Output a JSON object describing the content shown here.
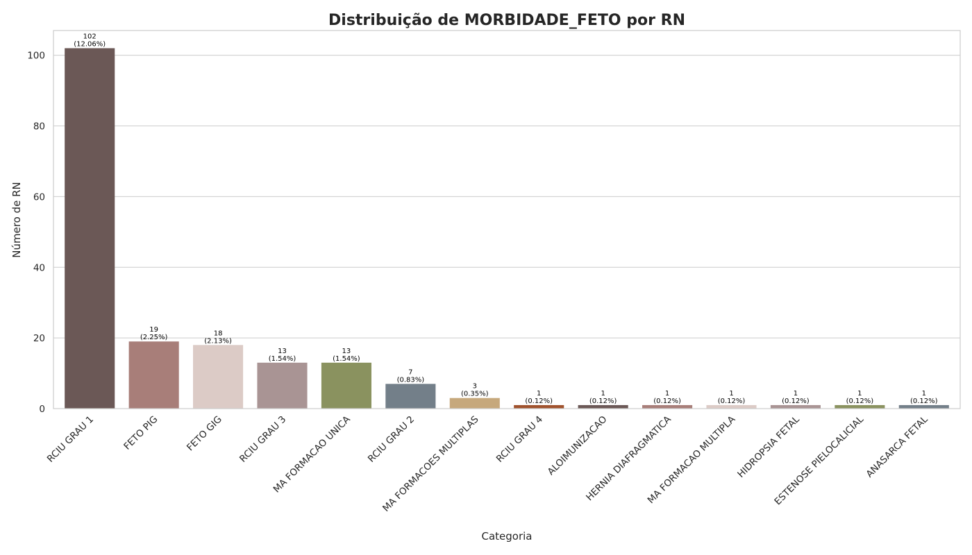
{
  "chart_data": {
    "type": "bar",
    "title": "Distribuição de MORBIDADE_FETO por RN",
    "xlabel": "Categoria",
    "ylabel": "Número de RN",
    "ylim": [
      0,
      107
    ],
    "yticks": [
      0,
      20,
      40,
      60,
      80,
      100
    ],
    "grid": true,
    "categories": [
      "RCIU GRAU 1",
      "FETO PIG",
      "FETO GIG",
      "RCIU GRAU 3",
      "MA FORMACAO UNICA",
      "RCIU GRAU 2",
      "MA FORMACOES MULTIPLAS",
      "RCIU GRAU 4",
      "ALOIMUNIZACAO",
      "HERNIA DIAFRAGMATICA",
      "MA FORMACAO MULTIPLA",
      "HIDROPSIA FETAL",
      "ESTENOSE PIELOCALICIAL",
      "ANASARCA FETAL"
    ],
    "values": [
      102,
      19,
      18,
      13,
      13,
      7,
      3,
      1,
      1,
      1,
      1,
      1,
      1,
      1
    ],
    "percent_labels": [
      "(12.06%)",
      "(2.25%)",
      "(2.13%)",
      "(1.54%)",
      "(1.54%)",
      "(0.83%)",
      "(0.35%)",
      "(0.12%)",
      "(0.12%)",
      "(0.12%)",
      "(0.12%)",
      "(0.12%)",
      "(0.12%)",
      "(0.12%)"
    ],
    "colors": [
      "#6b5856",
      "#a87e79",
      "#dccbc6",
      "#a99494",
      "#8a925f",
      "#737f89",
      "#c6a87c",
      "#a0522d",
      "#6b5856",
      "#a87e79",
      "#dccbc6",
      "#a99494",
      "#8a925f",
      "#737f89"
    ]
  }
}
